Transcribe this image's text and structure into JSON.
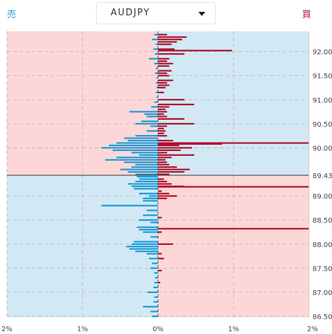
{
  "header": {
    "sell_label": "売",
    "buy_label": "買",
    "pair_selected": "AUDJPY"
  },
  "colors": {
    "sell": "#1a9bd7",
    "buy": "#b0102a",
    "sell_zone": "#d2e8f5",
    "buy_zone": "#fdd7d7"
  },
  "chart_data": {
    "type": "bar",
    "orientation": "horizontal",
    "current_price": 89.43,
    "current_price_label": "89.43",
    "price_range": [
      86.48,
      92.42
    ],
    "x_range": [
      -2,
      2
    ],
    "price_ticks": [
      {
        "value": 92.0,
        "label": "92.00"
      },
      {
        "value": 91.5,
        "label": "91.50"
      },
      {
        "value": 91.0,
        "label": "91.00"
      },
      {
        "value": 90.5,
        "label": "90.50"
      },
      {
        "value": 90.0,
        "label": "90.00"
      },
      {
        "value": 89.0,
        "label": "89.00"
      },
      {
        "value": 88.5,
        "label": "88.50"
      },
      {
        "value": 88.0,
        "label": "88.00"
      },
      {
        "value": 87.5,
        "label": "87.50"
      },
      {
        "value": 87.0,
        "label": "87.00"
      },
      {
        "value": 86.5,
        "label": "86.50"
      }
    ],
    "x_ticks": [
      {
        "value": -2,
        "label": "2%"
      },
      {
        "value": -1,
        "label": "1%"
      },
      {
        "value": 0,
        "label": "0%"
      },
      {
        "value": 1,
        "label": "1%"
      },
      {
        "value": 2,
        "label": "2%"
      }
    ],
    "grid": true,
    "sell_orders": [
      [
        92.35,
        0.05
      ],
      [
        92.25,
        0.08
      ],
      [
        92.15,
        0.03
      ],
      [
        92.05,
        0.06
      ],
      [
        91.95,
        0.04
      ],
      [
        91.85,
        0.12
      ],
      [
        91.75,
        0.05
      ],
      [
        91.65,
        0.03
      ],
      [
        91.55,
        0.04
      ],
      [
        91.45,
        0.02
      ],
      [
        91.35,
        0.03
      ],
      [
        91.25,
        0.02
      ],
      [
        91.15,
        0.03
      ],
      [
        91.05,
        0.02
      ],
      [
        90.95,
        0.05
      ],
      [
        90.85,
        0.09
      ],
      [
        90.75,
        0.38
      ],
      [
        90.7,
        0.18
      ],
      [
        90.65,
        0.15
      ],
      [
        90.55,
        0.22
      ],
      [
        90.5,
        0.3
      ],
      [
        90.45,
        0.1
      ],
      [
        90.35,
        0.15
      ],
      [
        90.25,
        0.3
      ],
      [
        90.2,
        0.45
      ],
      [
        90.15,
        0.4
      ],
      [
        90.1,
        0.55
      ],
      [
        90.05,
        0.65
      ],
      [
        90.0,
        0.75
      ],
      [
        89.95,
        0.6
      ],
      [
        89.9,
        0.35
      ],
      [
        89.85,
        0.25
      ],
      [
        89.8,
        0.55
      ],
      [
        89.75,
        0.7
      ],
      [
        89.7,
        0.45
      ],
      [
        89.65,
        0.3
      ],
      [
        89.6,
        0.35
      ],
      [
        89.55,
        0.5
      ],
      [
        89.5,
        0.4
      ],
      [
        89.45,
        0.3
      ],
      [
        89.4,
        0.28
      ],
      [
        89.35,
        0.25
      ],
      [
        89.3,
        0.3
      ],
      [
        89.25,
        0.4
      ],
      [
        89.2,
        0.35
      ],
      [
        89.15,
        0.32
      ],
      [
        89.05,
        0.25
      ],
      [
        89.0,
        0.12
      ],
      [
        88.95,
        0.2
      ],
      [
        88.9,
        0.2
      ],
      [
        88.8,
        0.75
      ],
      [
        88.7,
        0.15
      ],
      [
        88.6,
        0.2
      ],
      [
        88.5,
        0.25
      ],
      [
        88.45,
        0.1
      ],
      [
        88.35,
        0.28
      ],
      [
        88.3,
        0.25
      ],
      [
        88.25,
        0.2
      ],
      [
        88.15,
        0.1
      ],
      [
        88.05,
        0.32
      ],
      [
        88.0,
        0.35
      ],
      [
        87.95,
        0.42
      ],
      [
        87.9,
        0.38
      ],
      [
        87.85,
        0.3
      ],
      [
        87.8,
        0.15
      ],
      [
        87.7,
        0.12
      ],
      [
        87.6,
        0.08
      ],
      [
        87.5,
        0.1
      ],
      [
        87.4,
        0.05
      ],
      [
        87.3,
        0.04
      ],
      [
        87.2,
        0.05
      ],
      [
        87.1,
        0.06
      ],
      [
        87.0,
        0.14
      ],
      [
        86.9,
        0.05
      ],
      [
        86.8,
        0.06
      ],
      [
        86.7,
        0.2
      ],
      [
        86.6,
        0.1
      ],
      [
        86.5,
        0.08
      ]
    ],
    "buy_orders": [
      [
        92.35,
        0.12
      ],
      [
        92.3,
        0.38
      ],
      [
        92.25,
        0.32
      ],
      [
        92.2,
        0.25
      ],
      [
        92.15,
        0.18
      ],
      [
        92.05,
        0.22
      ],
      [
        92.02,
        0.98
      ],
      [
        91.95,
        0.35
      ],
      [
        91.85,
        0.15
      ],
      [
        91.8,
        0.12
      ],
      [
        91.75,
        0.2
      ],
      [
        91.7,
        0.15
      ],
      [
        91.6,
        0.18
      ],
      [
        91.55,
        0.12
      ],
      [
        91.5,
        0.15
      ],
      [
        91.4,
        0.2
      ],
      [
        91.35,
        0.12
      ],
      [
        91.3,
        0.15
      ],
      [
        91.25,
        0.1
      ],
      [
        91.15,
        0.08
      ],
      [
        91.0,
        0.35
      ],
      [
        90.9,
        0.48
      ],
      [
        90.85,
        0.15
      ],
      [
        90.8,
        0.1
      ],
      [
        90.75,
        0.12
      ],
      [
        90.7,
        0.08
      ],
      [
        90.65,
        0.12
      ],
      [
        90.6,
        0.35
      ],
      [
        90.5,
        0.48
      ],
      [
        90.45,
        0.12
      ],
      [
        90.4,
        0.08
      ],
      [
        90.35,
        0.1
      ],
      [
        90.3,
        0.08
      ],
      [
        90.25,
        0.12
      ],
      [
        90.15,
        0.2
      ],
      [
        90.1,
        2.0
      ],
      [
        90.08,
        0.85
      ],
      [
        90.05,
        0.28
      ],
      [
        90.0,
        0.45
      ],
      [
        89.95,
        0.3
      ],
      [
        89.9,
        0.12
      ],
      [
        89.85,
        0.48
      ],
      [
        89.8,
        0.18
      ],
      [
        89.75,
        0.1
      ],
      [
        89.7,
        0.12
      ],
      [
        89.65,
        0.15
      ],
      [
        89.6,
        0.25
      ],
      [
        89.55,
        0.42
      ],
      [
        89.5,
        0.35
      ],
      [
        89.45,
        0.15
      ],
      [
        89.35,
        0.08
      ],
      [
        89.3,
        0.12
      ],
      [
        89.25,
        0.18
      ],
      [
        89.2,
        0.35
      ],
      [
        89.19,
        2.0
      ],
      [
        89.1,
        0.05
      ],
      [
        89.05,
        0.15
      ],
      [
        89.0,
        0.25
      ],
      [
        88.95,
        0.12
      ],
      [
        88.55,
        0.05
      ],
      [
        88.32,
        2.0
      ],
      [
        88.25,
        0.05
      ],
      [
        88.0,
        0.2
      ],
      [
        87.8,
        0.05
      ],
      [
        87.7,
        0.08
      ],
      [
        87.45,
        0.05
      ],
      [
        87.2,
        0.03
      ]
    ]
  }
}
